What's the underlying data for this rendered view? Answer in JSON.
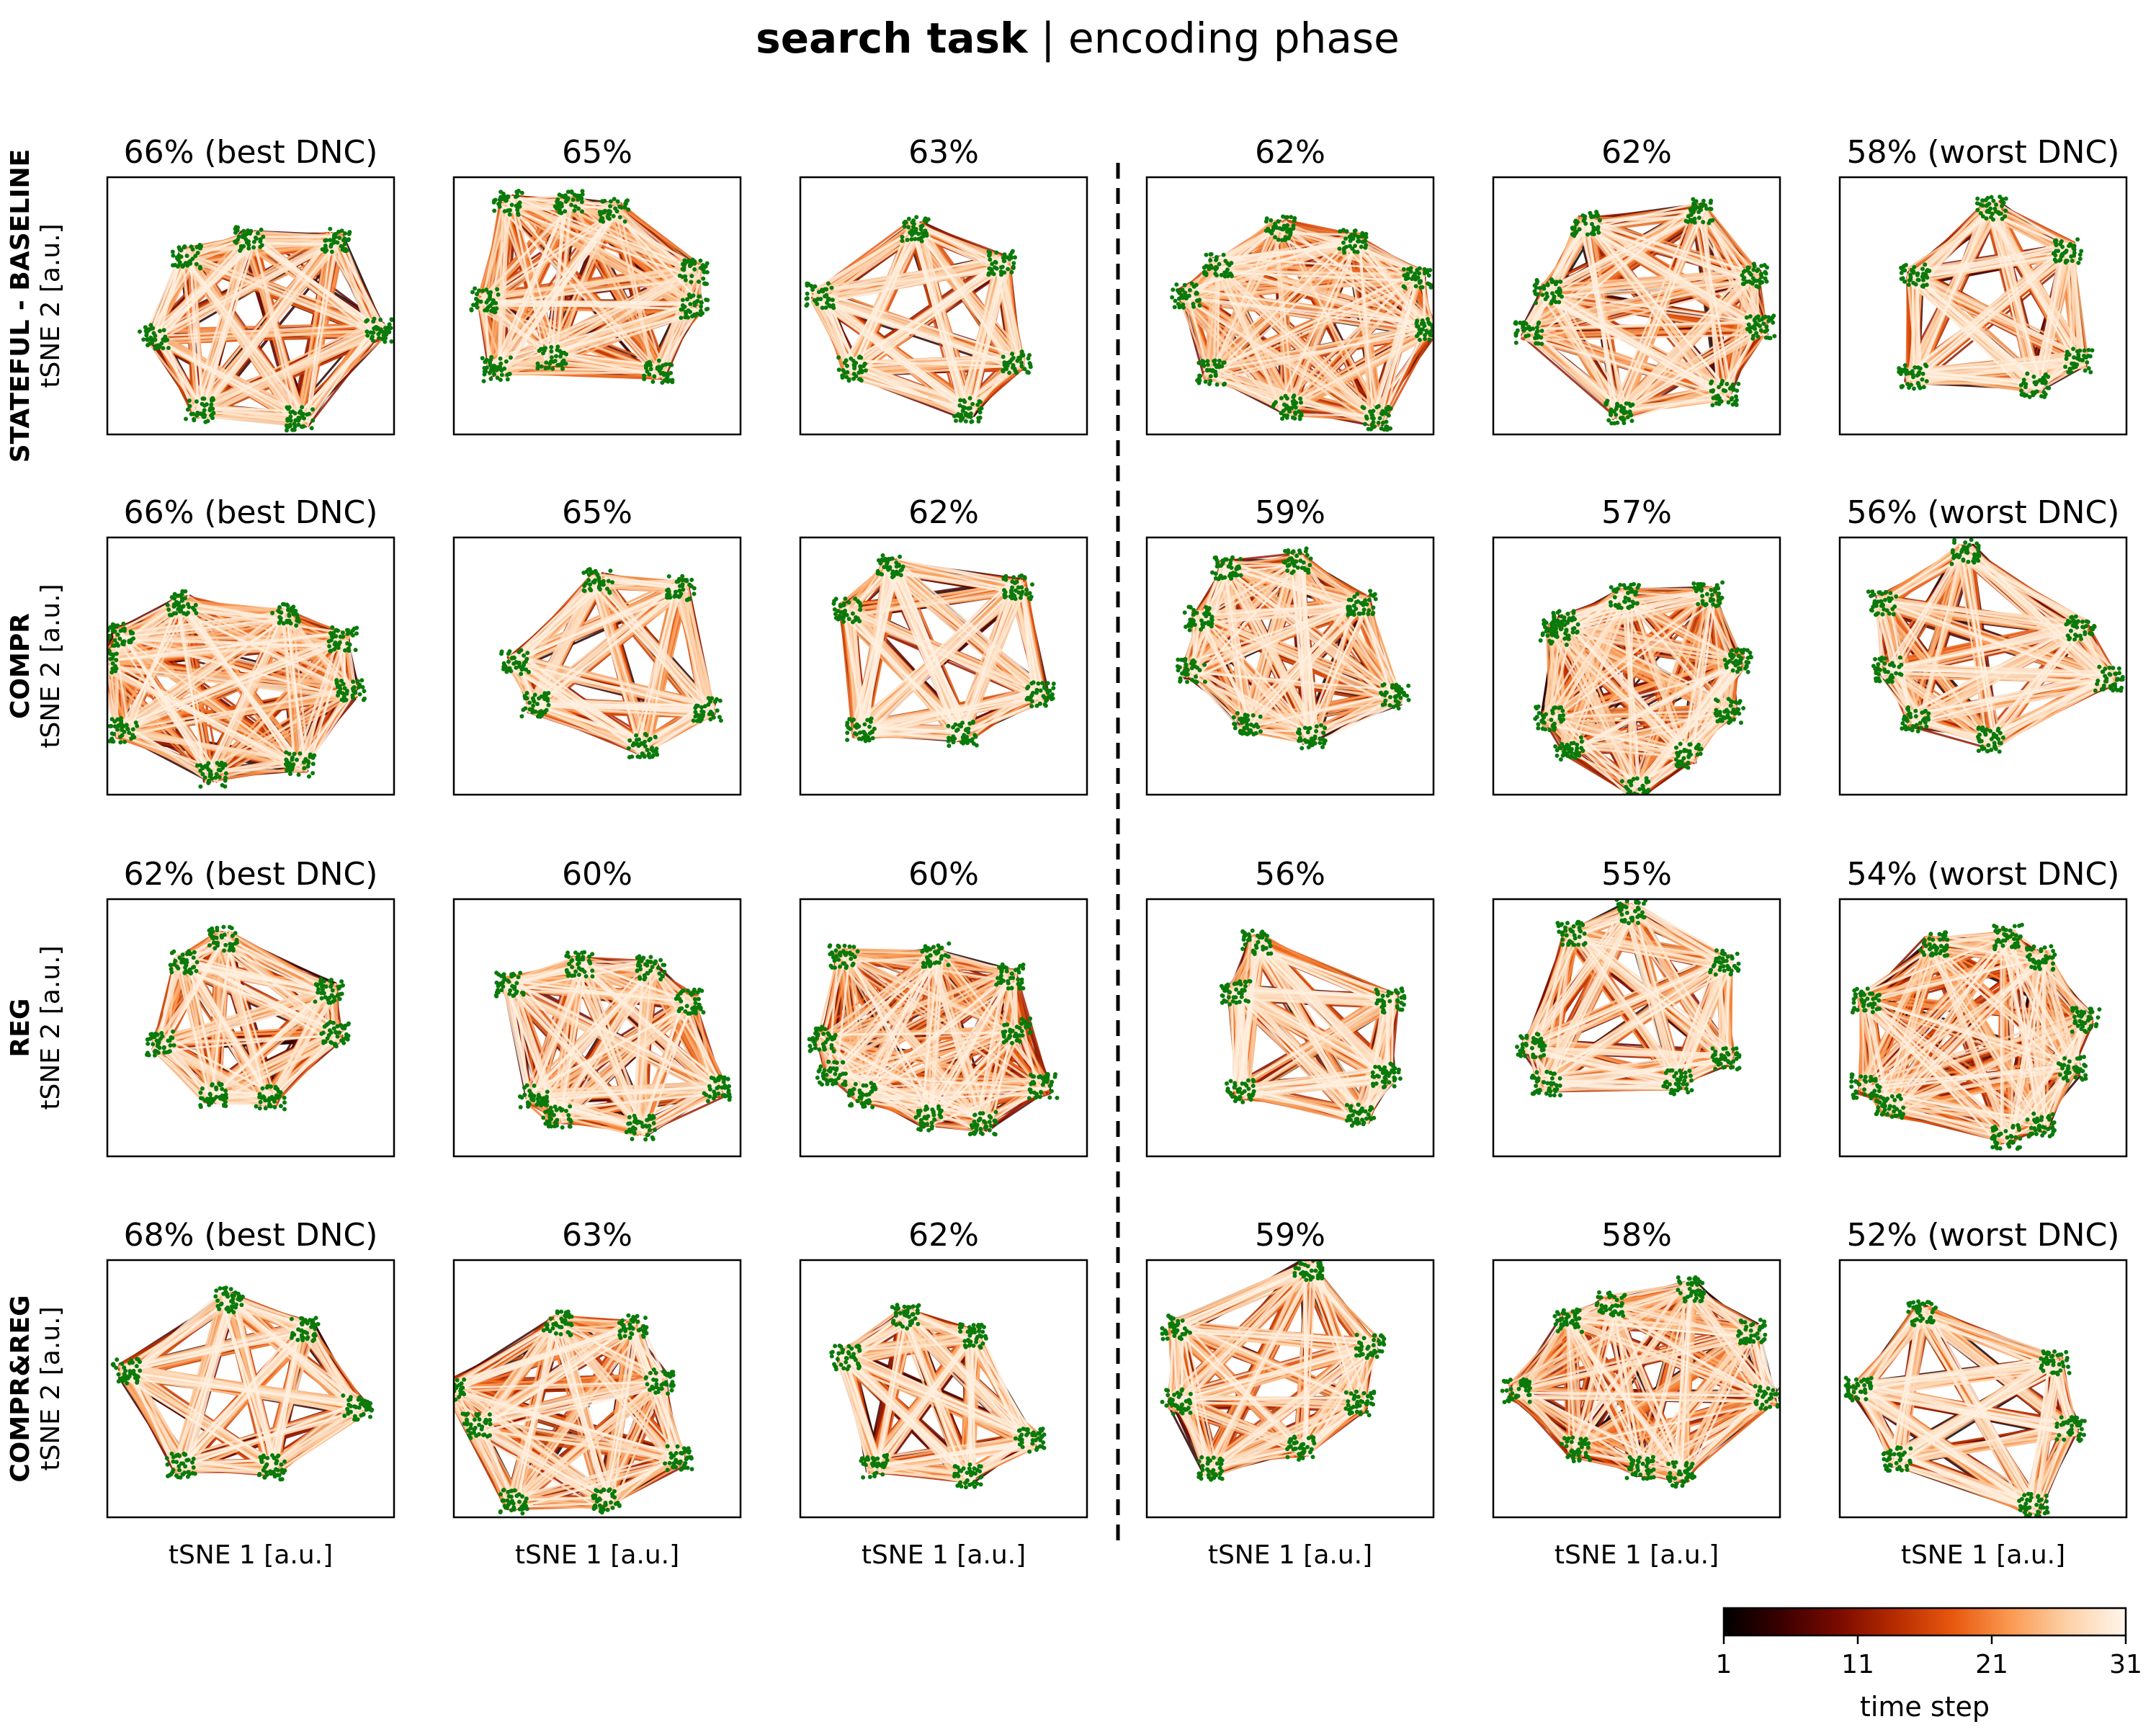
{
  "figure": {
    "title_bold": "search task",
    "title_rest": " | encoding phase",
    "xlabel": "tSNE 1 [a.u.]",
    "ylabel": "tSNE 2 [a.u.]"
  },
  "colorbar": {
    "label": "time step",
    "ticks": [
      "1",
      "11",
      "21",
      "31"
    ],
    "range": [
      1,
      31
    ],
    "colormap": [
      "#000000",
      "#3a0000",
      "#7a0a00",
      "#b72c00",
      "#e8580f",
      "#fb9a52",
      "#fdd2aa",
      "#fff5eb"
    ]
  },
  "colors": {
    "points": "#0a7a0a",
    "divider": "#000000"
  },
  "chart_data": {
    "type": "scatter",
    "description_note": "",
    "rows": [
      {
        "name": "STATEFUL - BASELINE",
        "panels": [
          {
            "title": "66% (best DNC)",
            "accuracy": 66
          },
          {
            "title": "65%",
            "accuracy": 65
          },
          {
            "title": "63%",
            "accuracy": 63
          },
          {
            "title": "62%",
            "accuracy": 62
          },
          {
            "title": "62%",
            "accuracy": 62
          },
          {
            "title": "58% (worst DNC)",
            "accuracy": 58
          }
        ]
      },
      {
        "name": "COMPR",
        "panels": [
          {
            "title": "66% (best DNC)",
            "accuracy": 66
          },
          {
            "title": "65%",
            "accuracy": 65
          },
          {
            "title": "62%",
            "accuracy": 62
          },
          {
            "title": "59%",
            "accuracy": 59
          },
          {
            "title": "57%",
            "accuracy": 57
          },
          {
            "title": "56% (worst DNC)",
            "accuracy": 56
          }
        ]
      },
      {
        "name": "REG",
        "panels": [
          {
            "title": "62% (best DNC)",
            "accuracy": 62
          },
          {
            "title": "60%",
            "accuracy": 60
          },
          {
            "title": "60%",
            "accuracy": 60
          },
          {
            "title": "56%",
            "accuracy": 56
          },
          {
            "title": "55%",
            "accuracy": 55
          },
          {
            "title": "54% (worst DNC)",
            "accuracy": 54
          }
        ]
      },
      {
        "name": "COMPR&REG",
        "panels": [
          {
            "title": "68% (best DNC)",
            "accuracy": 68
          },
          {
            "title": "63%",
            "accuracy": 63
          },
          {
            "title": "62%",
            "accuracy": 62
          },
          {
            "title": "59%",
            "accuracy": 59
          },
          {
            "title": "58%",
            "accuracy": 58
          },
          {
            "title": "52% (worst DNC)",
            "accuracy": 52
          }
        ]
      }
    ]
  }
}
